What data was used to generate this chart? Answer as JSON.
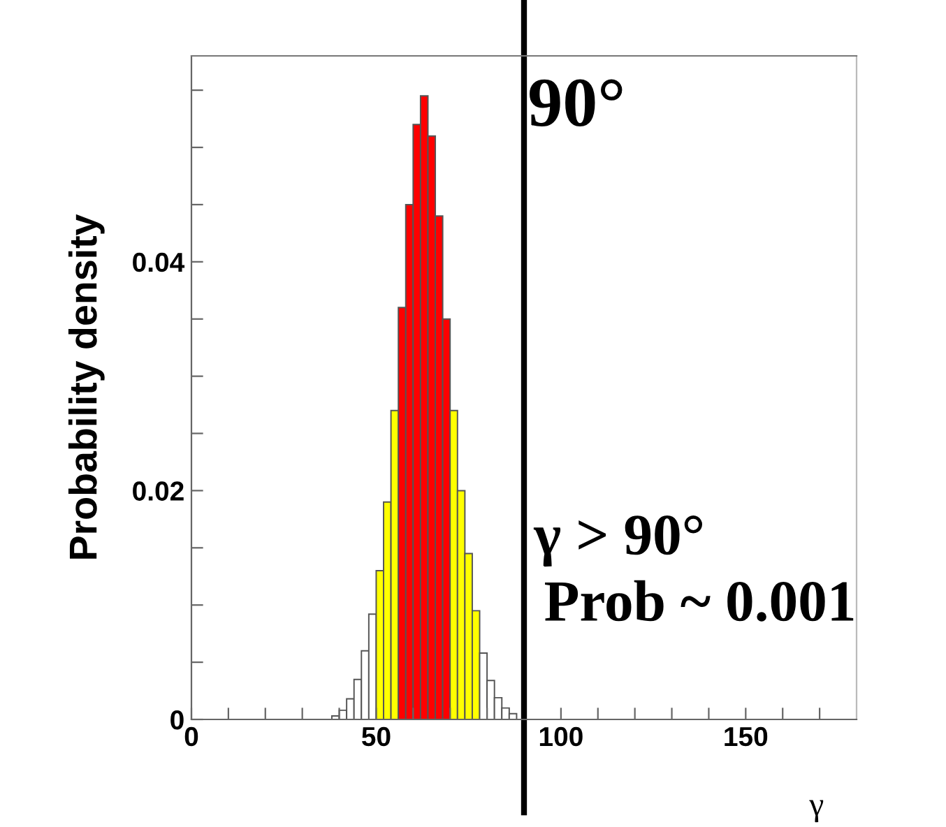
{
  "chart_data": {
    "type": "histogram",
    "ylabel": "Probability density",
    "xlabel": "γ",
    "bins": [
      38,
      40,
      42,
      44,
      46,
      48,
      50,
      52,
      54,
      56,
      58,
      60,
      62,
      64,
      66,
      68,
      70,
      72,
      74,
      76,
      78,
      80,
      82,
      84,
      86,
      88
    ],
    "values": [
      0.0003,
      0.0008,
      0.0018,
      0.0035,
      0.006,
      0.0092,
      0.013,
      0.019,
      0.027,
      0.036,
      0.045,
      0.052,
      0.0545,
      0.051,
      0.044,
      0.035,
      0.027,
      0.02,
      0.0145,
      0.0095,
      0.0058,
      0.0034,
      0.0019,
      0.001,
      0.0005
    ],
    "colors": [
      "#ffffff",
      "#ffffff",
      "#ffffff",
      "#ffffff",
      "#ffffff",
      "#ffffff",
      "#ffff00",
      "#ffff00",
      "#ffff00",
      "#ff0000",
      "#ff0000",
      "#ff0000",
      "#ff0000",
      "#ff0000",
      "#ff0000",
      "#ff0000",
      "#ffff00",
      "#ffff00",
      "#ffff00",
      "#ffff00",
      "#ffffff",
      "#ffffff",
      "#ffffff",
      "#ffffff",
      "#ffffff"
    ],
    "xlim": [
      0,
      180
    ],
    "ylim": [
      0,
      0.058
    ],
    "xticks": [
      0,
      {
        "value": 10,
        "label": null
      },
      {
        "value": 20,
        "label": null
      },
      {
        "value": 30,
        "label": null
      },
      {
        "value": 40,
        "label": null
      },
      50,
      {
        "value": 60,
        "label": null
      },
      {
        "value": 70,
        "label": null
      },
      {
        "value": 80,
        "label": null
      },
      {
        "value": 90,
        "label": null
      },
      100,
      {
        "value": 110,
        "label": null
      },
      {
        "value": 120,
        "label": null
      },
      {
        "value": 130,
        "label": null
      },
      {
        "value": 140,
        "label": null
      },
      150,
      {
        "value": 160,
        "label": null
      },
      {
        "value": 170,
        "label": null
      }
    ],
    "yticks": [
      0,
      {
        "value": 0.005,
        "label": null
      },
      {
        "value": 0.01,
        "label": null
      },
      {
        "value": 0.015,
        "label": null
      },
      {
        "value": 0.02,
        "label": "0.02"
      },
      {
        "value": 0.025,
        "label": null
      },
      {
        "value": 0.03,
        "label": null
      },
      {
        "value": 0.035,
        "label": null
      },
      {
        "value": 0.04,
        "label": "0.04"
      },
      {
        "value": 0.045,
        "label": null
      },
      {
        "value": 0.05,
        "label": null
      },
      {
        "value": 0.055,
        "label": null
      }
    ],
    "ref_lines": [
      {
        "axis": "x",
        "value": 90,
        "label": "90°",
        "color": "#000000"
      }
    ],
    "annotations": [
      "γ > 90°",
      "Prob ~ 0.001"
    ]
  }
}
